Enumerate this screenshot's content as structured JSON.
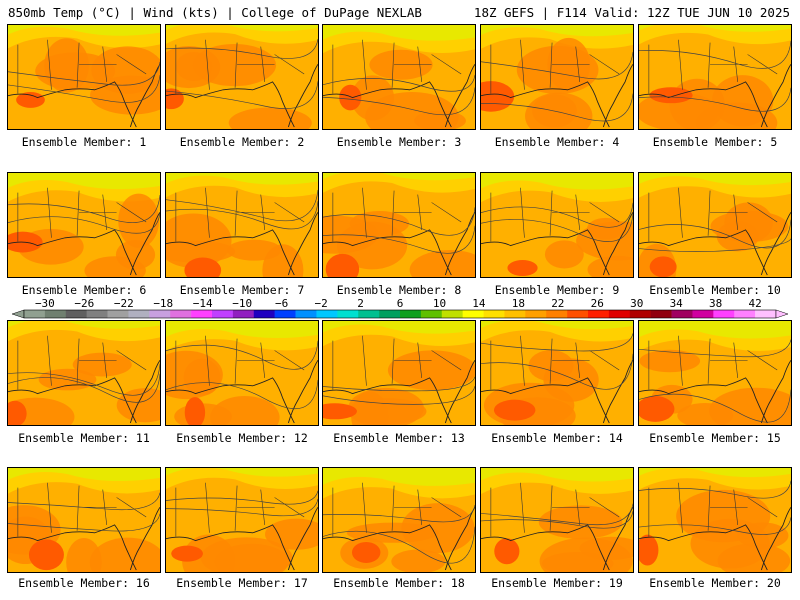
{
  "header": {
    "left_title": "850mb Temp (°C) | Wind (kts) | College of DuPage NEXLAB",
    "right_title": "18Z GEFS | F114 Valid: 12Z TUE JUN 10 2025"
  },
  "panels": [
    {
      "label": "Ensemble Member: 1"
    },
    {
      "label": "Ensemble Member: 2"
    },
    {
      "label": "Ensemble Member: 3"
    },
    {
      "label": "Ensemble Member: 4"
    },
    {
      "label": "Ensemble Member: 5"
    },
    {
      "label": "Ensemble Member: 6"
    },
    {
      "label": "Ensemble Member: 7"
    },
    {
      "label": "Ensemble Member: 8"
    },
    {
      "label": "Ensemble Member: 9"
    },
    {
      "label": "Ensemble Member: 10"
    },
    {
      "label": "Ensemble Member: 11"
    },
    {
      "label": "Ensemble Member: 12"
    },
    {
      "label": "Ensemble Member: 13"
    },
    {
      "label": "Ensemble Member: 14"
    },
    {
      "label": "Ensemble Member: 15"
    },
    {
      "label": "Ensemble Member: 16"
    },
    {
      "label": "Ensemble Member: 17"
    },
    {
      "label": "Ensemble Member: 18"
    },
    {
      "label": "Ensemble Member: 19"
    },
    {
      "label": "Ensemble Member: 20"
    }
  ],
  "colorbar": {
    "tick_labels": [
      "-30",
      "-26",
      "-22",
      "-18",
      "-14",
      "-10",
      "-6",
      "-2",
      "2",
      "6",
      "10",
      "14",
      "18",
      "22",
      "26",
      "30",
      "34",
      "38",
      "42"
    ],
    "colors": [
      "#90a090",
      "#708070",
      "#606060",
      "#808080",
      "#a0a0a0",
      "#b0b0c0",
      "#c8a0e0",
      "#e070e0",
      "#ff40ff",
      "#c040ff",
      "#9020c0",
      "#2000c0",
      "#0040ff",
      "#0090ff",
      "#00c8ff",
      "#00e0d0",
      "#00c090",
      "#00a060",
      "#10a020",
      "#60c000",
      "#c0e000",
      "#ffff00",
      "#ffe000",
      "#ffc000",
      "#ffa000",
      "#ff8000",
      "#ff5000",
      "#ff2000",
      "#e00000",
      "#b00000",
      "#900010",
      "#a00060",
      "#d000a0",
      "#ff40ff",
      "#ff80ff",
      "#ffc0ff"
    ]
  }
}
